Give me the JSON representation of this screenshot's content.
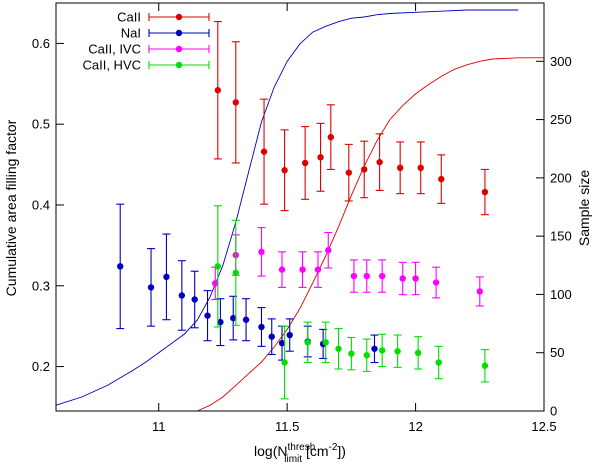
{
  "chart_data": {
    "type": "scatter",
    "title": "",
    "xlabel": {
      "prefix": "log(N",
      "superscript": "thresh",
      "subscript": "limit",
      "suffix": " [cm",
      "unit_exp": "-2",
      "close": "])"
    },
    "ylabel": "Cumulative area filling factor",
    "y2label": "Sample size",
    "xlim": [
      10.6,
      12.5
    ],
    "ylim": [
      0.145,
      0.65
    ],
    "y2lim": [
      0,
      350
    ],
    "xticks": [
      {
        "value": 11,
        "label": "11"
      },
      {
        "value": 11.5,
        "label": "11.5"
      },
      {
        "value": 12,
        "label": "12"
      },
      {
        "value": 12.5,
        "label": "12.5"
      }
    ],
    "yticks": [
      {
        "value": 0.2,
        "label": "0.2"
      },
      {
        "value": 0.3,
        "label": "0.3"
      },
      {
        "value": 0.4,
        "label": "0.4"
      },
      {
        "value": 0.5,
        "label": "0.5"
      },
      {
        "value": 0.6,
        "label": "0.6"
      }
    ],
    "y2ticks": [
      {
        "value": 0,
        "label": "0"
      },
      {
        "value": 50,
        "label": "50"
      },
      {
        "value": 100,
        "label": "100"
      },
      {
        "value": 150,
        "label": "150"
      },
      {
        "value": 200,
        "label": "200"
      },
      {
        "value": 250,
        "label": "250"
      },
      {
        "value": 300,
        "label": "300"
      }
    ],
    "legend_position": "top-left",
    "series": [
      {
        "name": "CaII",
        "color": "#e00000",
        "x": [
          11.23,
          11.3,
          11.41,
          11.49,
          11.57,
          11.63,
          11.67,
          11.74,
          11.8,
          11.86,
          11.94,
          12.02,
          12.1,
          12.27
        ],
        "y": [
          0.542,
          0.527,
          0.466,
          0.443,
          0.452,
          0.459,
          0.484,
          0.44,
          0.444,
          0.453,
          0.446,
          0.446,
          0.432,
          0.416
        ],
        "err": [
          0.085,
          0.075,
          0.065,
          0.05,
          0.045,
          0.042,
          0.04,
          0.035,
          0.035,
          0.035,
          0.032,
          0.032,
          0.03,
          0.028
        ]
      },
      {
        "name": "NaI",
        "color": "#0000c0",
        "x": [
          10.85,
          10.97,
          11.03,
          11.09,
          11.14,
          11.19,
          11.24,
          11.29,
          11.34,
          11.4,
          11.44,
          11.48,
          11.51,
          11.58,
          11.64,
          11.84
        ],
        "y": [
          0.324,
          0.298,
          0.311,
          0.288,
          0.283,
          0.263,
          0.255,
          0.26,
          0.258,
          0.249,
          0.237,
          0.229,
          0.239,
          0.231,
          0.228,
          0.222
        ],
        "err": [
          0.077,
          0.048,
          0.053,
          0.043,
          0.035,
          0.031,
          0.029,
          0.027,
          0.026,
          0.024,
          0.022,
          0.021,
          0.02,
          0.019,
          0.018,
          0.017
        ]
      },
      {
        "name": "CaII, IVC",
        "color": "#ff00ff",
        "x": [
          11.22,
          11.3,
          11.4,
          11.48,
          11.56,
          11.62,
          11.66,
          11.76,
          11.81,
          11.87,
          11.95,
          12.0,
          12.08,
          12.25
        ],
        "y": [
          0.303,
          0.338,
          0.342,
          0.32,
          0.32,
          0.32,
          0.344,
          0.312,
          0.312,
          0.312,
          0.309,
          0.309,
          0.304,
          0.293
        ],
        "err": [
          0.02,
          0.025,
          0.03,
          0.022,
          0.022,
          0.022,
          0.022,
          0.02,
          0.02,
          0.02,
          0.02,
          0.02,
          0.019,
          0.018
        ]
      },
      {
        "name": "CaII, HVC",
        "color": "#00e000",
        "x": [
          11.23,
          11.3,
          11.49,
          11.58,
          11.65,
          11.7,
          11.75,
          11.81,
          11.87,
          11.93,
          12.01,
          12.09,
          12.27
        ],
        "y": [
          0.324,
          0.316,
          0.205,
          0.23,
          0.23,
          0.222,
          0.216,
          0.214,
          0.22,
          0.219,
          0.217,
          0.205,
          0.201
        ],
        "err": [
          0.075,
          0.065,
          0.045,
          0.025,
          0.025,
          0.025,
          0.02,
          0.02,
          0.02,
          0.02,
          0.02,
          0.02,
          0.02
        ]
      }
    ],
    "sample_size_curves": [
      {
        "name": "NaI sample size",
        "color": "#0000c0",
        "axis": "right",
        "x": [
          10.6,
          10.7,
          10.8,
          10.9,
          10.95,
          11.0,
          11.05,
          11.1,
          11.15,
          11.2,
          11.25,
          11.3,
          11.35,
          11.4,
          11.45,
          11.5,
          11.55,
          11.6,
          11.65,
          11.7,
          11.75,
          11.8,
          11.85,
          11.9,
          12.0,
          12.1,
          12.2,
          12.3,
          12.4
        ],
        "y": [
          5,
          12,
          22,
          35,
          42,
          50,
          58,
          66,
          78,
          98,
          125,
          162,
          205,
          248,
          278,
          300,
          315,
          325,
          330,
          334,
          337,
          338,
          340,
          341,
          342,
          343,
          344,
          344,
          344
        ]
      },
      {
        "name": "CaII sample size",
        "color": "#e00000",
        "axis": "right",
        "x": [
          11.15,
          11.2,
          11.25,
          11.3,
          11.35,
          11.4,
          11.45,
          11.5,
          11.55,
          11.6,
          11.65,
          11.7,
          11.75,
          11.8,
          11.85,
          11.9,
          11.95,
          12.0,
          12.05,
          12.1,
          12.15,
          12.2,
          12.25,
          12.3,
          12.4,
          12.5
        ],
        "y": [
          0,
          5,
          12,
          22,
          32,
          42,
          55,
          70,
          88,
          110,
          133,
          158,
          185,
          210,
          232,
          250,
          262,
          272,
          280,
          287,
          293,
          297,
          300,
          302,
          303,
          303
        ]
      }
    ]
  }
}
